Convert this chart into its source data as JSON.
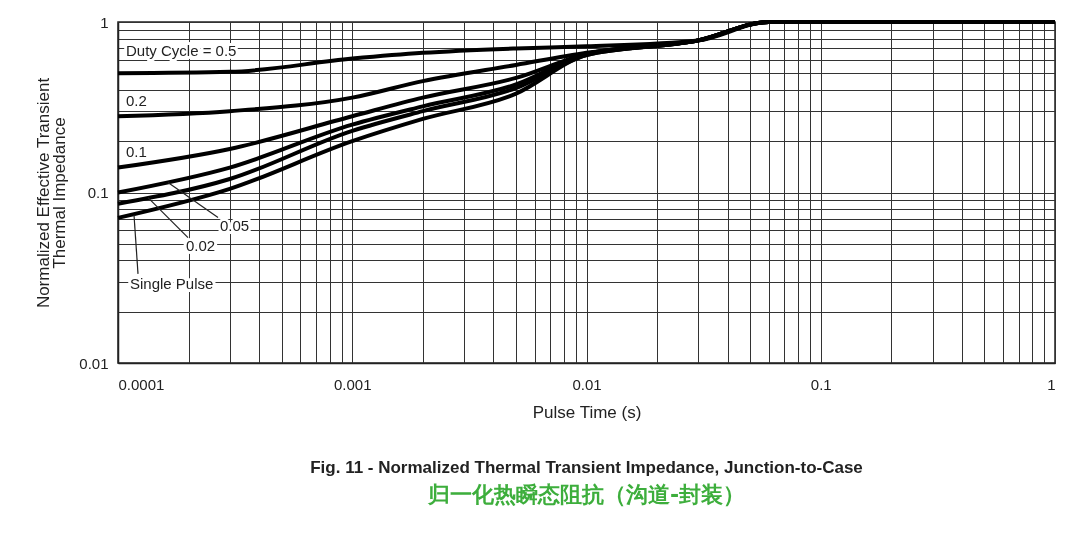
{
  "chart_data": {
    "type": "line",
    "title": "Fig. 11 - Normalized Thermal Transient Impedance, Junction-to-Case",
    "subtitle": "归一化热瞬态阻抗（沟道-封装）",
    "xlabel": "Pulse Time (s)",
    "ylabel": "Normalized Effective Transient\nThermal Impedance",
    "log": "xy",
    "grid": true,
    "legend": false,
    "line_style": "solid",
    "marker": "none",
    "x": [
      0.0001,
      0.0003,
      0.001,
      0.002,
      0.005,
      0.01,
      0.03,
      0.06,
      1
    ],
    "series": [
      {
        "name": "Duty Cycle = 0.5",
        "color": "#000000",
        "values": [
          0.5,
          0.51,
          0.61,
          0.66,
          0.7,
          0.72,
          0.78,
          1,
          1
        ]
      },
      {
        "name": "0.2",
        "color": "#000000",
        "values": [
          0.28,
          0.3,
          0.36,
          0.45,
          0.56,
          0.66,
          0.78,
          1,
          1
        ]
      },
      {
        "name": "0.1",
        "color": "#000000",
        "values": [
          0.14,
          0.18,
          0.28,
          0.36,
          0.47,
          0.65,
          0.78,
          1,
          1
        ]
      },
      {
        "name": "0.05",
        "color": "#000000",
        "values": [
          0.1,
          0.14,
          0.25,
          0.32,
          0.43,
          0.65,
          0.78,
          1,
          1
        ]
      },
      {
        "name": "0.02",
        "color": "#000000",
        "values": [
          0.086,
          0.12,
          0.23,
          0.3,
          0.41,
          0.64,
          0.78,
          1,
          1
        ]
      },
      {
        "name": "Single Pulse",
        "color": "#000000",
        "values": [
          0.071,
          0.105,
          0.2,
          0.27,
          0.38,
          0.64,
          0.78,
          1,
          1
        ]
      }
    ],
    "xlim": [
      0.0001,
      1
    ],
    "ylim": [
      0.01,
      1
    ],
    "xticks": [
      0.0001,
      {
        "value": 0.0002,
        "label": null
      },
      {
        "value": 0.0003,
        "label": null
      },
      {
        "value": 0.0004,
        "label": null
      },
      {
        "value": 0.0005,
        "label": null
      },
      {
        "value": 0.0006,
        "label": null
      },
      {
        "value": 0.0007,
        "label": null
      },
      {
        "value": 0.0008,
        "label": null
      },
      {
        "value": 0.0009,
        "label": null
      },
      0.001,
      {
        "value": 0.002,
        "label": null
      },
      {
        "value": 0.003,
        "label": null
      },
      {
        "value": 0.004,
        "label": null
      },
      {
        "value": 0.005,
        "label": null
      },
      {
        "value": 0.006,
        "label": null
      },
      {
        "value": 0.007,
        "label": null
      },
      {
        "value": 0.008,
        "label": null
      },
      {
        "value": 0.009,
        "label": null
      },
      0.01,
      {
        "value": 0.02,
        "label": null
      },
      {
        "value": 0.03,
        "label": null
      },
      {
        "value": 0.04,
        "label": null
      },
      {
        "value": 0.05,
        "label": null
      },
      {
        "value": 0.06,
        "label": null
      },
      {
        "value": 0.07,
        "label": null
      },
      {
        "value": 0.08,
        "label": null
      },
      {
        "value": 0.09,
        "label": null
      },
      0.1,
      {
        "value": 0.2,
        "label": null
      },
      {
        "value": 0.3,
        "label": null
      },
      {
        "value": 0.4,
        "label": null
      },
      {
        "value": 0.5,
        "label": null
      },
      {
        "value": 0.6,
        "label": null
      },
      {
        "value": 0.7,
        "label": null
      },
      {
        "value": 0.8,
        "label": null
      },
      {
        "value": 0.9,
        "label": null
      },
      1
    ],
    "yticks": [
      0.01,
      {
        "value": 0.02,
        "label": null
      },
      {
        "value": 0.03,
        "label": null
      },
      {
        "value": 0.04,
        "label": null
      },
      {
        "value": 0.05,
        "label": null
      },
      {
        "value": 0.06,
        "label": null
      },
      {
        "value": 0.07,
        "label": null
      },
      {
        "value": 0.08,
        "label": null
      },
      {
        "value": 0.09,
        "label": null
      },
      0.1,
      {
        "value": 0.2,
        "label": null
      },
      {
        "value": 0.3,
        "label": null
      },
      {
        "value": 0.4,
        "label": null
      },
      {
        "value": 0.5,
        "label": null
      },
      {
        "value": 0.6,
        "label": null
      },
      {
        "value": 0.7,
        "label": null
      },
      {
        "value": 0.8,
        "label": null
      },
      {
        "value": 0.9,
        "label": null
      },
      1
    ]
  }
}
